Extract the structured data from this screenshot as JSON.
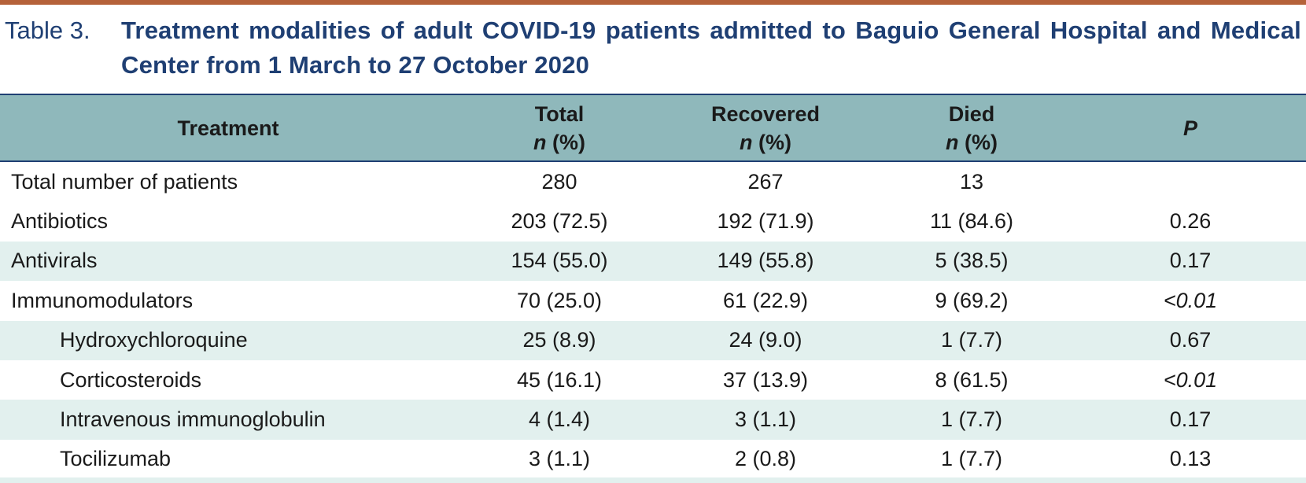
{
  "caption": {
    "label": "Table 3.",
    "title": "Treatment modalities of adult COVID-19 patients admitted to Baguio General Hospital and Medical Center from 1 March to 27 October 2020"
  },
  "colors": {
    "accent_rule": "#b5623a",
    "title_text": "#1f3f73",
    "header_bg": "#8fb8bb",
    "row_shade": "#e2f0ee"
  },
  "table": {
    "headers": {
      "treatment": "Treatment",
      "total": "Total",
      "recovered": "Recovered",
      "died": "Died",
      "n_pct_n": "n",
      "n_pct_rest": "(%)",
      "p": "P"
    },
    "rows": [
      {
        "label": "Total number of patients",
        "total": "280",
        "recovered": "267",
        "died": "13",
        "p": ""
      },
      {
        "label": "Antibiotics",
        "total": "203 (72.5)",
        "recovered": "192 (71.9)",
        "died": "11 (84.6)",
        "p": "0.26"
      },
      {
        "label": "Antivirals",
        "total": "154 (55.0)",
        "recovered": "149 (55.8)",
        "died": "5 (38.5)",
        "p": "0.17"
      },
      {
        "label": "Immunomodulators",
        "total": "70 (25.0)",
        "recovered": "61 (22.9)",
        "died": "9 (69.2)",
        "p": "<0.01"
      },
      {
        "label": "Hydroxychloroquine",
        "total": "25 (8.9)",
        "recovered": "24 (9.0)",
        "died": "1 (7.7)",
        "p": "0.67"
      },
      {
        "label": "Corticosteroids",
        "total": "45 (16.1)",
        "recovered": "37 (13.9)",
        "died": "8 (61.5)",
        "p": "<0.01"
      },
      {
        "label": "Intravenous immunoglobulin",
        "total": "4 (1.4)",
        "recovered": "3 (1.1)",
        "died": "1 (7.7)",
        "p": "0.17"
      },
      {
        "label": "Tocilizumab",
        "total": "3 (1.1)",
        "recovered": "2 (0.8)",
        "died": "1 (7.7)",
        "p": "0.13"
      }
    ]
  }
}
